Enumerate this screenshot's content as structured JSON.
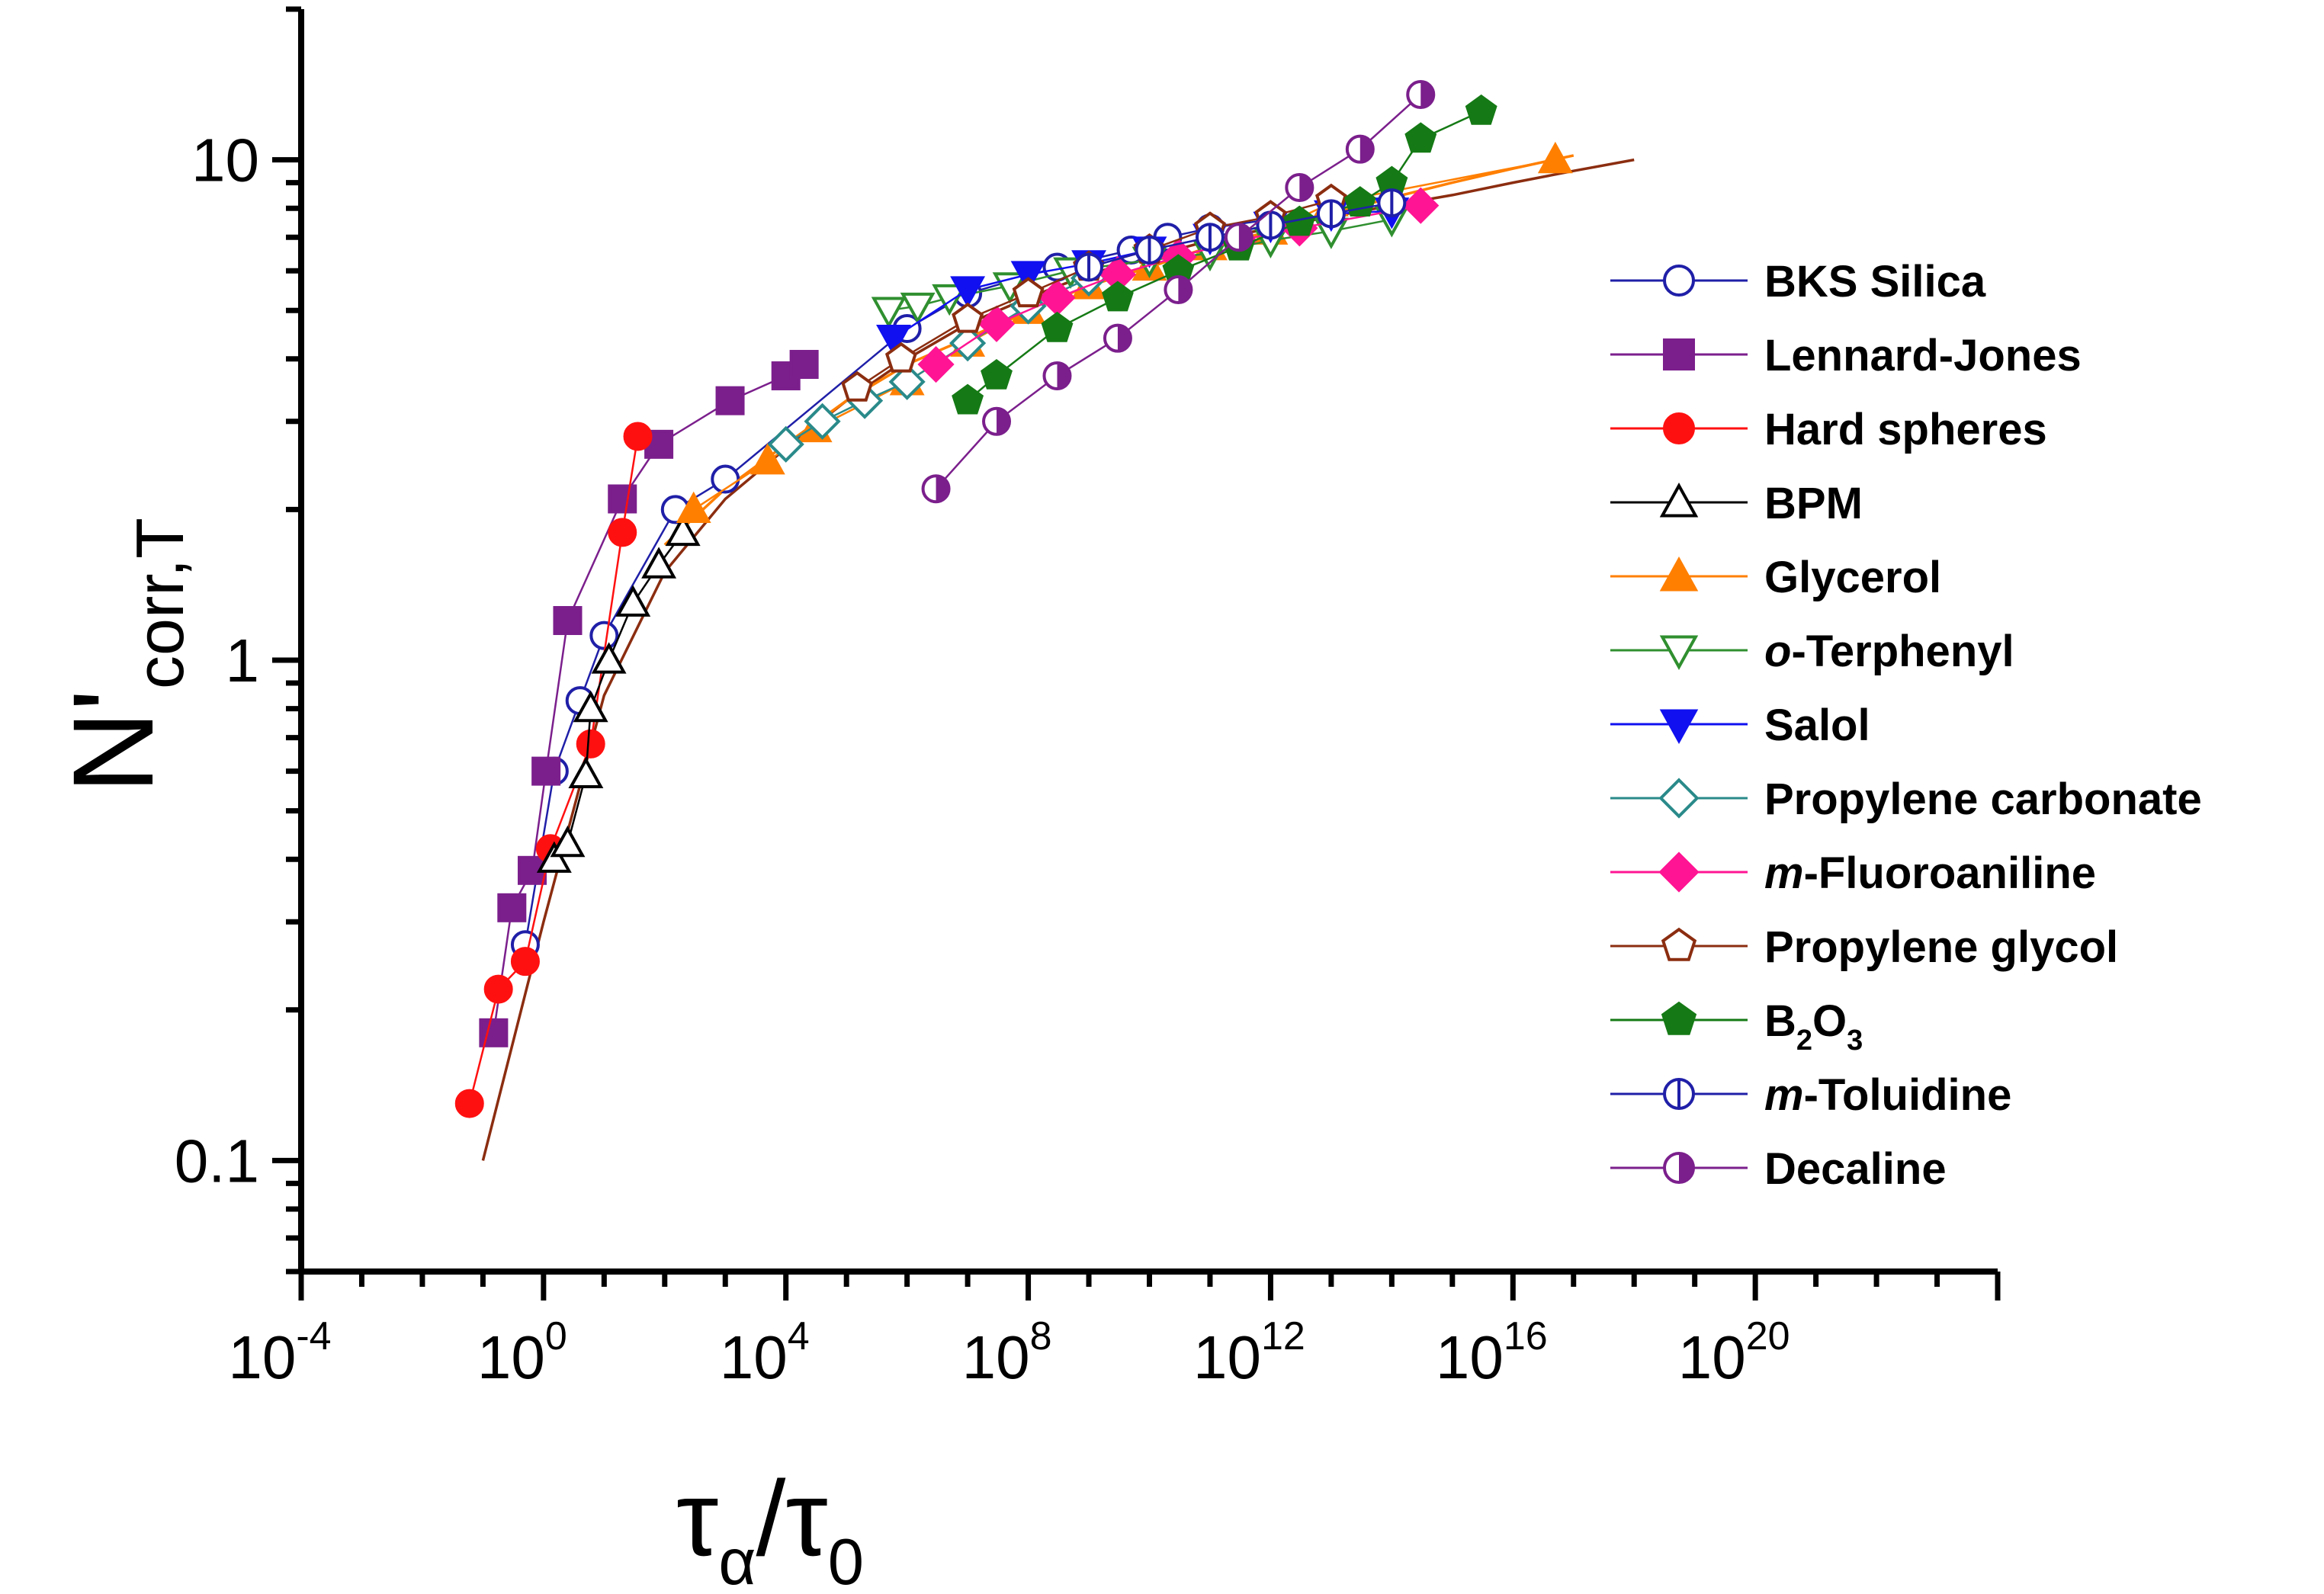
{
  "chart_data": {
    "type": "scatter",
    "xscale": "log",
    "yscale": "log",
    "xlim": [
      0.0001,
      1e+24
    ],
    "ylim": [
      0.06,
      20
    ],
    "xlabel": {
      "main": "τ",
      "sub": "α",
      "sep": "/",
      "main2": "τ",
      "sub2": "0"
    },
    "ylabel": {
      "main": "N'",
      "sub": "corr,T"
    },
    "xticks": [
      {
        "value": 0.0001,
        "base": "10",
        "exp": "-4"
      },
      {
        "value": 1,
        "base": "10",
        "exp": "0"
      },
      {
        "value": 10000,
        "base": "10",
        "exp": "4"
      },
      {
        "value": 100000000,
        "base": "10",
        "exp": "8"
      },
      {
        "value": 1000000000000.0,
        "base": "10",
        "exp": "12"
      },
      {
        "value": 1e+16,
        "base": "10",
        "exp": "16"
      },
      {
        "value": 1e+20,
        "base": "10",
        "exp": "20"
      }
    ],
    "yticks": [
      {
        "value": 0.1,
        "label": "0.1"
      },
      {
        "value": 1,
        "label": "1"
      },
      {
        "value": 10,
        "label": "10"
      }
    ],
    "legend_position": "right",
    "fit_curves": [
      {
        "color": "#8B2D10",
        "x": [
          0.1,
          1,
          10,
          100,
          1000,
          10000,
          100000,
          1000000,
          10000000,
          100000000,
          1000000000.0,
          10000000000.0,
          100000000000.0,
          1000000000000.0,
          10000000000000.0,
          100000000000000.0,
          1000000000000000.0,
          1e+16,
          1e+17,
          1e+18
        ],
        "y": [
          0.1,
          0.3,
          0.85,
          1.5,
          2.1,
          2.65,
          3.3,
          4.0,
          4.7,
          5.3,
          5.9,
          6.4,
          6.9,
          7.3,
          7.7,
          8.1,
          8.5,
          9.0,
          9.5,
          10.0
        ]
      },
      {
        "color": "#FF7F00",
        "x": [
          100,
          1000,
          10000,
          100000,
          1000000,
          10000000,
          100000000,
          1000000000.0,
          10000000000.0,
          100000000000.0,
          1000000000000.0,
          10000000000000.0,
          100000000000000.0,
          1000000000000000.0,
          1e+16,
          1e+17
        ],
        "y": [
          1.7,
          2.2,
          2.7,
          3.3,
          3.9,
          4.4,
          5.0,
          5.6,
          6.1,
          6.7,
          7.2,
          7.8,
          8.4,
          9.0,
          9.6,
          10.2
        ]
      }
    ],
    "series": [
      {
        "name": "BKS Silica",
        "color": "#1F1FA8",
        "marker": "circle",
        "fill": "none",
        "x": [
          0.5,
          1.5,
          4,
          10,
          150,
          1000,
          1000000,
          10000000,
          300000000,
          5000000000,
          20000000000.0,
          100000000000.0,
          1000000000000.0
        ],
        "y": [
          0.27,
          0.6,
          0.83,
          1.12,
          2.0,
          2.3,
          4.6,
          5.4,
          6.1,
          6.6,
          7.0,
          7.3,
          7.6
        ]
      },
      {
        "name": "Lennard-Jones",
        "color": "#7B1F8C",
        "marker": "square",
        "fill": "full",
        "x": [
          0.15,
          0.3,
          0.65,
          1.1,
          2.5,
          20,
          80,
          1200,
          10000,
          20000
        ],
        "y": [
          0.18,
          0.32,
          0.38,
          0.6,
          1.2,
          2.1,
          2.7,
          3.3,
          3.7,
          3.9
        ]
      },
      {
        "name": "Hard spheres",
        "color": "#FF1010",
        "marker": "circle",
        "fill": "full",
        "x": [
          0.06,
          0.18,
          0.5,
          1.3,
          6,
          20,
          36
        ],
        "y": [
          0.13,
          0.22,
          0.25,
          0.42,
          0.68,
          1.8,
          2.8
        ]
      },
      {
        "name": "BPM",
        "color": "#000000",
        "marker": "triangle-up",
        "fill": "none",
        "x": [
          1.5,
          2.5,
          5,
          6,
          12,
          30,
          80,
          200
        ],
        "y": [
          0.4,
          0.43,
          0.59,
          0.8,
          1.0,
          1.3,
          1.55,
          1.8
        ]
      },
      {
        "name": "Glycerol",
        "color": "#FF7F00",
        "marker": "triangle-up",
        "fill": "full",
        "x": [
          300,
          5000,
          30000,
          1000000,
          10000000,
          100000000,
          1000000000.0,
          10000000000.0,
          100000000000.0,
          1000000000000.0,
          10000000000000.0,
          5e+16
        ],
        "y": [
          2.0,
          2.5,
          2.9,
          3.6,
          4.3,
          5.0,
          5.6,
          6.1,
          6.7,
          7.2,
          8.2,
          10.0
        ]
      },
      {
        "name": "o-Terpheny",
        "display_name_note": "",
        "color": "#2F8F2F",
        "marker": "triangle-down",
        "fill": "none",
        "x": [
          500000,
          1500000,
          5000000,
          50000000,
          500000000,
          10000000000.0,
          100000000000.0,
          1000000000000.0,
          10000000000000.0,
          100000000000000.0
        ],
        "y": [
          5.0,
          5.1,
          5.3,
          5.6,
          6.0,
          6.3,
          6.5,
          6.9,
          7.2,
          7.6
        ]
      },
      {
        "name": "Salol",
        "color": "#1010F0",
        "marker": "triangle-down",
        "fill": "full",
        "x": [
          600000,
          10000000,
          100000000,
          1000000000.0,
          10000000000.0,
          100000000000.0,
          1000000000000.0,
          10000000000000.0,
          100000000000000.0
        ],
        "y": [
          4.4,
          5.5,
          5.9,
          6.2,
          6.6,
          7.0,
          7.4,
          7.8,
          7.9
        ]
      },
      {
        "name": "Propylene carbonate",
        "color": "#2A8A8A",
        "marker": "diamond",
        "fill": "none",
        "x": [
          10000,
          40000,
          200000,
          1000000,
          10000000,
          100000000,
          1000000000.0
        ],
        "y": [
          2.7,
          3.0,
          3.3,
          3.6,
          4.3,
          5.1,
          5.8
        ]
      },
      {
        "name": "m-Fluoroaniline",
        "color": "#FF1493",
        "marker": "diamond",
        "fill": "full",
        "x": [
          3000000,
          30000000,
          300000000,
          3000000000,
          30000000000.0,
          300000000000.0,
          3000000000000.0,
          300000000000000.0
        ],
        "y": [
          3.9,
          4.7,
          5.3,
          5.9,
          6.4,
          6.9,
          7.3,
          8.1
        ]
      },
      {
        "name": "Propylene glycol",
        "color": "#8B2D10",
        "marker": "pentagon",
        "fill": "none",
        "x": [
          150000,
          800000,
          10000000,
          100000000,
          1000000000.0,
          10000000000.0,
          100000000000.0,
          1000000000000.0,
          10000000000000.0
        ],
        "y": [
          3.5,
          4.0,
          4.8,
          5.4,
          6.1,
          6.6,
          7.3,
          7.7,
          8.3
        ]
      },
      {
        "name": "B2O3",
        "color": "#157A15",
        "marker": "pentagon",
        "fill": "full",
        "x": [
          10000000,
          30000000,
          300000000,
          3000000000,
          30000000000,
          300000000000.0,
          3000000000000.0,
          30000000000000.0,
          100000000000000.0,
          300000000000000.0,
          3000000000000000.0
        ],
        "y": [
          3.3,
          3.7,
          4.6,
          5.3,
          6.0,
          6.7,
          7.5,
          8.2,
          9.0,
          11.0,
          12.5
        ]
      },
      {
        "name": "m-Toluidine",
        "color": "#1F1FA8",
        "marker": "circle-vline",
        "fill": "none",
        "x": [
          1000000000.0,
          10000000000.0,
          100000000000.0,
          1000000000000.0,
          10000000000000.0,
          100000000000000.0
        ],
        "y": [
          6.1,
          6.6,
          7.0,
          7.4,
          7.8,
          8.2
        ]
      },
      {
        "name": "Decaline",
        "color": "#7B1F8C",
        "marker": "circle-half",
        "fill": "half",
        "x": [
          3000000,
          30000000,
          300000000,
          3000000000,
          30000000000.0,
          300000000000.0,
          3000000000000.0,
          30000000000000.0,
          300000000000000.0
        ],
        "y": [
          2.2,
          3.0,
          3.7,
          4.4,
          5.5,
          7.0,
          8.8,
          10.5,
          13.5
        ]
      }
    ],
    "legend_labels": [
      {
        "key": "BKS Silica",
        "parts": [
          {
            "t": "BKS Silica"
          }
        ]
      },
      {
        "key": "Lennard-Jones",
        "parts": [
          {
            "t": "Lennard-Jones"
          }
        ]
      },
      {
        "key": "Hard spheres",
        "parts": [
          {
            "t": "Hard spheres"
          }
        ]
      },
      {
        "key": "BPM",
        "parts": [
          {
            "t": "BPM"
          }
        ]
      },
      {
        "key": "Glycerol",
        "parts": [
          {
            "t": "Glycerol"
          }
        ]
      },
      {
        "key": "o-Terpheny",
        "parts": [
          {
            "t": "o",
            "italic": true
          },
          {
            "t": "-Terphenyl"
          }
        ]
      },
      {
        "key": "Salol",
        "parts": [
          {
            "t": "Salol"
          }
        ]
      },
      {
        "key": "Propylene carbonate",
        "parts": [
          {
            "t": "Propylene carbonate"
          }
        ]
      },
      {
        "key": "m-Fluoroaniline",
        "parts": [
          {
            "t": "m",
            "italic": true
          },
          {
            "t": "-Fluoroaniline"
          }
        ]
      },
      {
        "key": "Propylene glycol",
        "parts": [
          {
            "t": "Propylene glycol"
          }
        ]
      },
      {
        "key": "B2O3",
        "parts": [
          {
            "t": "B"
          },
          {
            "t": "2",
            "sub": true
          },
          {
            "t": "O"
          },
          {
            "t": "3",
            "sub": true
          }
        ]
      },
      {
        "key": "m-Toluidine",
        "parts": [
          {
            "t": "m",
            "italic": true
          },
          {
            "t": "-Toluidine"
          }
        ]
      },
      {
        "key": "Decaline",
        "parts": [
          {
            "t": "Decaline"
          }
        ]
      }
    ]
  }
}
